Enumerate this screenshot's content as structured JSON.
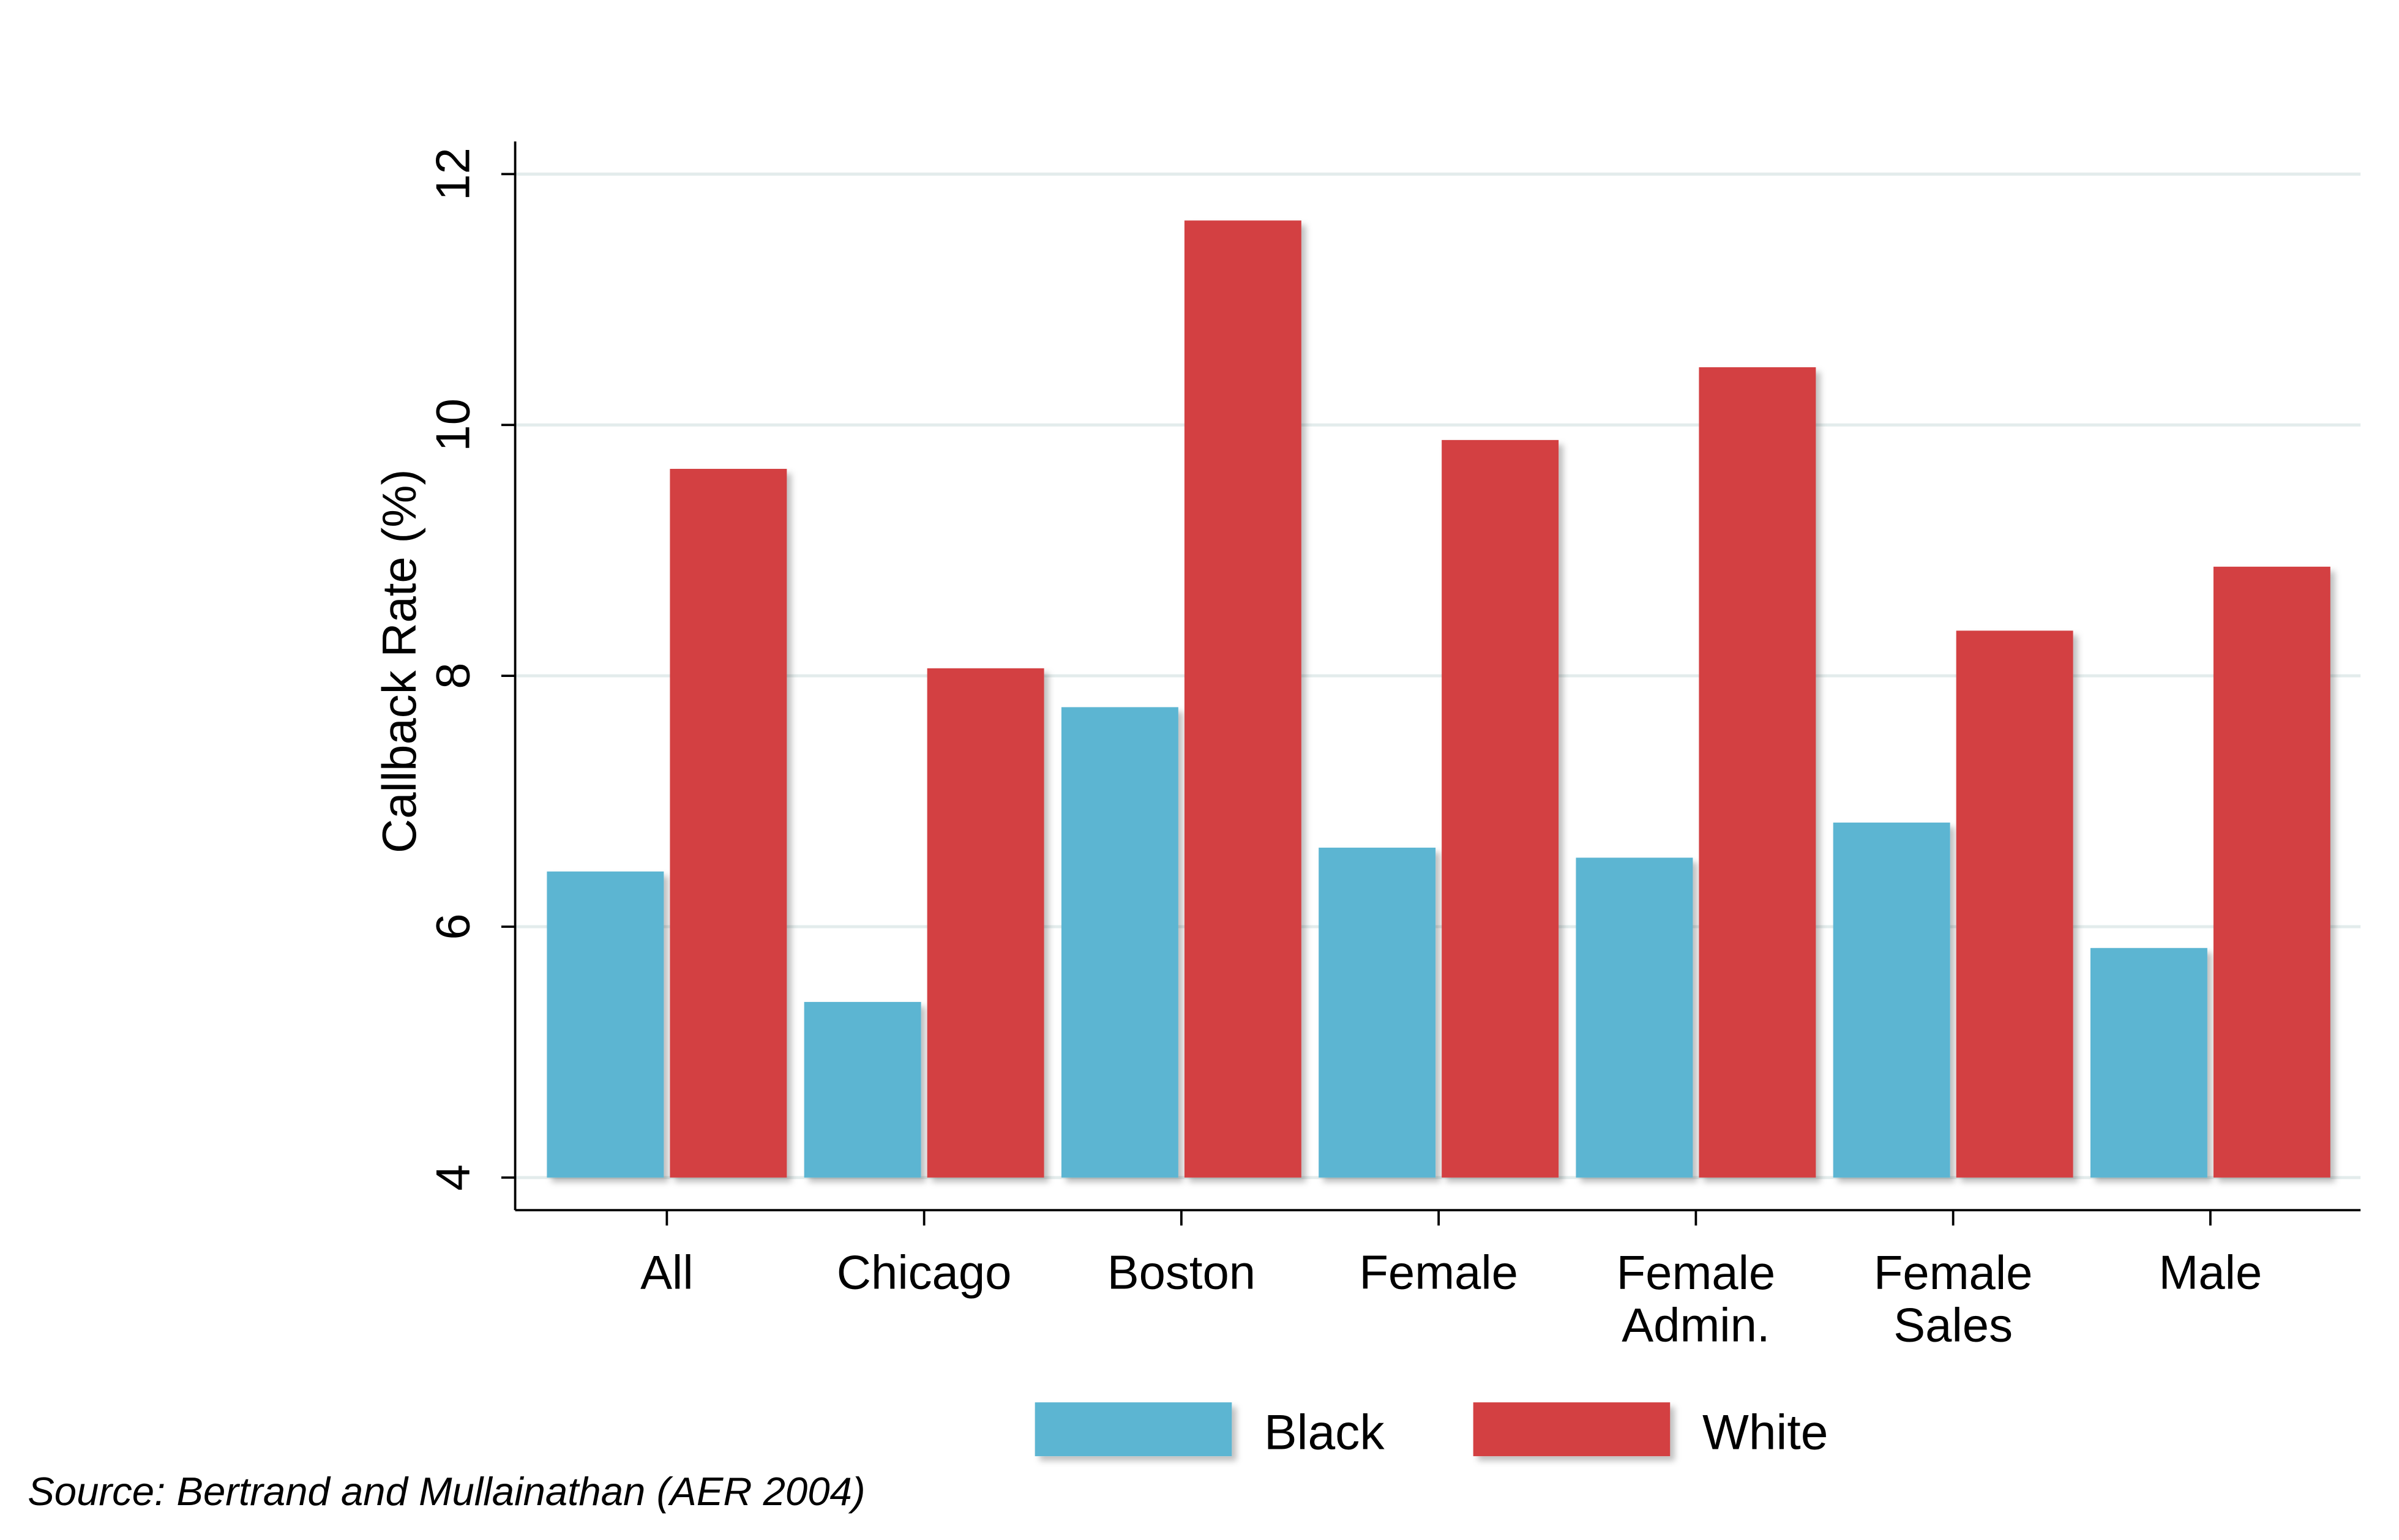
{
  "chart_data": {
    "type": "grouped_bar",
    "y_label": "Callback Rate (%)",
    "categories": [
      "All",
      "Chicago",
      "Boston",
      "Female",
      "Female Admin.",
      "Female Sales",
      "Male"
    ],
    "series": [
      {
        "name": "Black",
        "color": "#5bb5d2",
        "values": [
          6.44,
          5.4,
          7.75,
          6.63,
          6.55,
          6.83,
          5.83
        ]
      },
      {
        "name": "White",
        "color": "#d34043",
        "values": [
          9.65,
          8.06,
          11.63,
          9.88,
          10.46,
          8.36,
          8.87
        ]
      }
    ],
    "ylim": [
      3.74,
      12.26
    ],
    "yticks": [
      4,
      6,
      8,
      10,
      12
    ],
    "grid": true,
    "legend": "bottom",
    "note": "Source: Bertrand and Mullainathan (AER 2004)"
  }
}
